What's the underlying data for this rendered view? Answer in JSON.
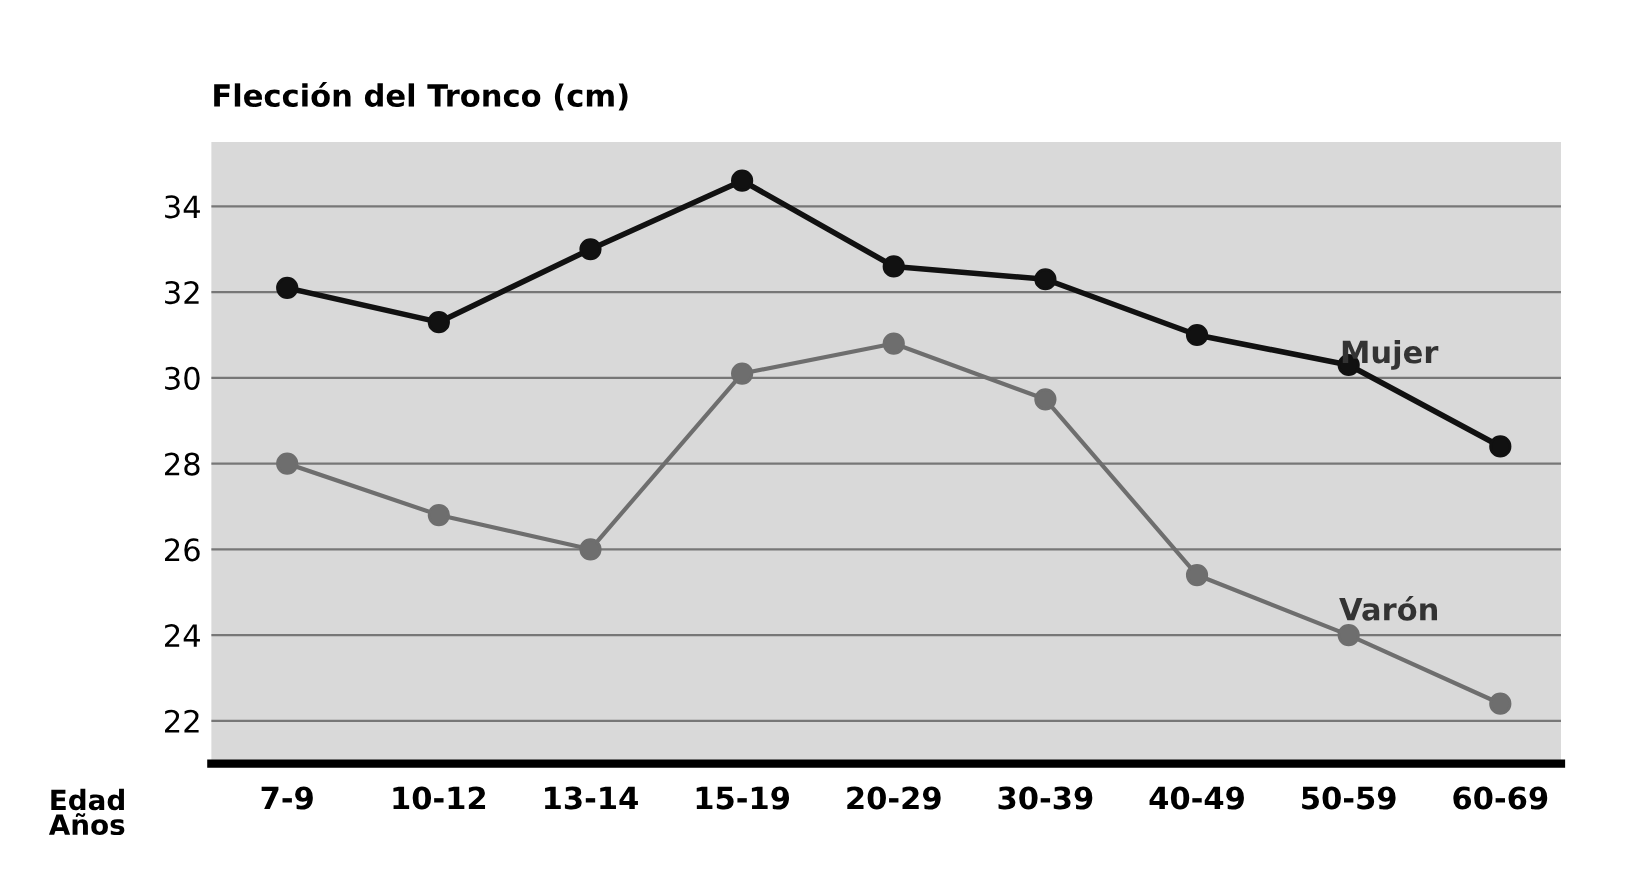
{
  "chart_data": {
    "type": "line",
    "ylabel": "Flección del Tronco (cm)",
    "xlabel": "Edad\nAños",
    "categories": [
      "7-9",
      "10-12",
      "13-14",
      "15-19",
      "20-29",
      "30-39",
      "40-49",
      "50-59",
      "60-69"
    ],
    "series": [
      {
        "name": "Mujer",
        "color": "#111111",
        "values": [
          32.1,
          31.3,
          33.0,
          34.6,
          32.6,
          32.3,
          31.0,
          30.3,
          28.4
        ]
      },
      {
        "name": "Varón",
        "color": "#6e6e6e",
        "values": [
          28.0,
          26.8,
          26.0,
          30.1,
          30.8,
          29.5,
          25.4,
          24.0,
          22.4
        ]
      }
    ],
    "ylim": [
      21,
      35.5
    ],
    "yticks": [
      22,
      24,
      26,
      28,
      30,
      32,
      34
    ],
    "grid": "y",
    "marker": "circle",
    "line_style": "solid",
    "legend": false
  }
}
